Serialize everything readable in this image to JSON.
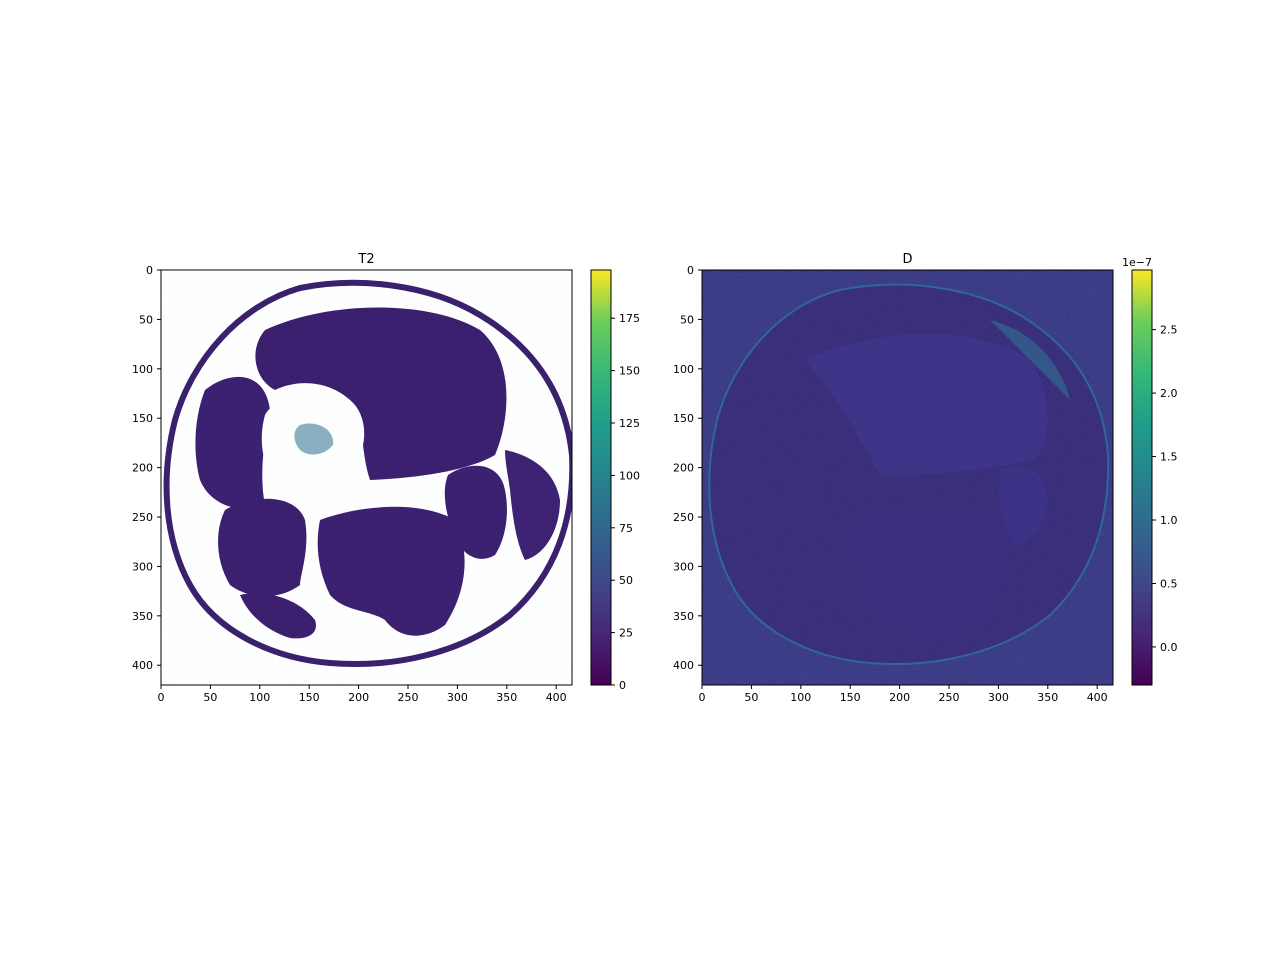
{
  "chart_data": [
    {
      "type": "heatmap",
      "title": "T2",
      "x_range": [
        0,
        416
      ],
      "y_range": [
        0,
        420
      ],
      "y_inverted": true,
      "x_ticks": [
        0,
        50,
        100,
        150,
        200,
        250,
        300,
        350,
        400
      ],
      "y_ticks": [
        0,
        50,
        100,
        150,
        200,
        250,
        300,
        350,
        400
      ],
      "colormap": "viridis",
      "background_color": "#ffffff",
      "colorbar": {
        "range": [
          0,
          198
        ],
        "ticks": [
          0,
          25,
          50,
          75,
          100,
          125,
          150,
          175
        ],
        "tick_labels": [
          "0",
          "25",
          "50",
          "75",
          "100",
          "125",
          "150",
          "175"
        ],
        "offset_label": ""
      },
      "description": "cross-section of a limb, dark purple muscle regions, white masked gaps, scattered teal/green pixels"
    },
    {
      "type": "heatmap",
      "title": "D",
      "x_range": [
        0,
        416
      ],
      "y_range": [
        0,
        420
      ],
      "y_inverted": true,
      "x_ticks": [
        0,
        50,
        100,
        150,
        200,
        250,
        300,
        350,
        400
      ],
      "y_ticks": [
        0,
        50,
        100,
        150,
        200,
        250,
        300,
        350,
        400
      ],
      "colormap": "viridis",
      "background_color": "#3b3a86",
      "colorbar": {
        "range": [
          -0.3,
          2.97
        ],
        "ticks": [
          0.0,
          0.5,
          1.0,
          1.5,
          2.0,
          2.5
        ],
        "tick_labels": [
          "0.0",
          "0.5",
          "1.0",
          "1.5",
          "2.0",
          "2.5"
        ],
        "offset_label": "1e−7"
      },
      "description": "noisy diffusion map, faint circular outline of the limb cross-section"
    }
  ]
}
